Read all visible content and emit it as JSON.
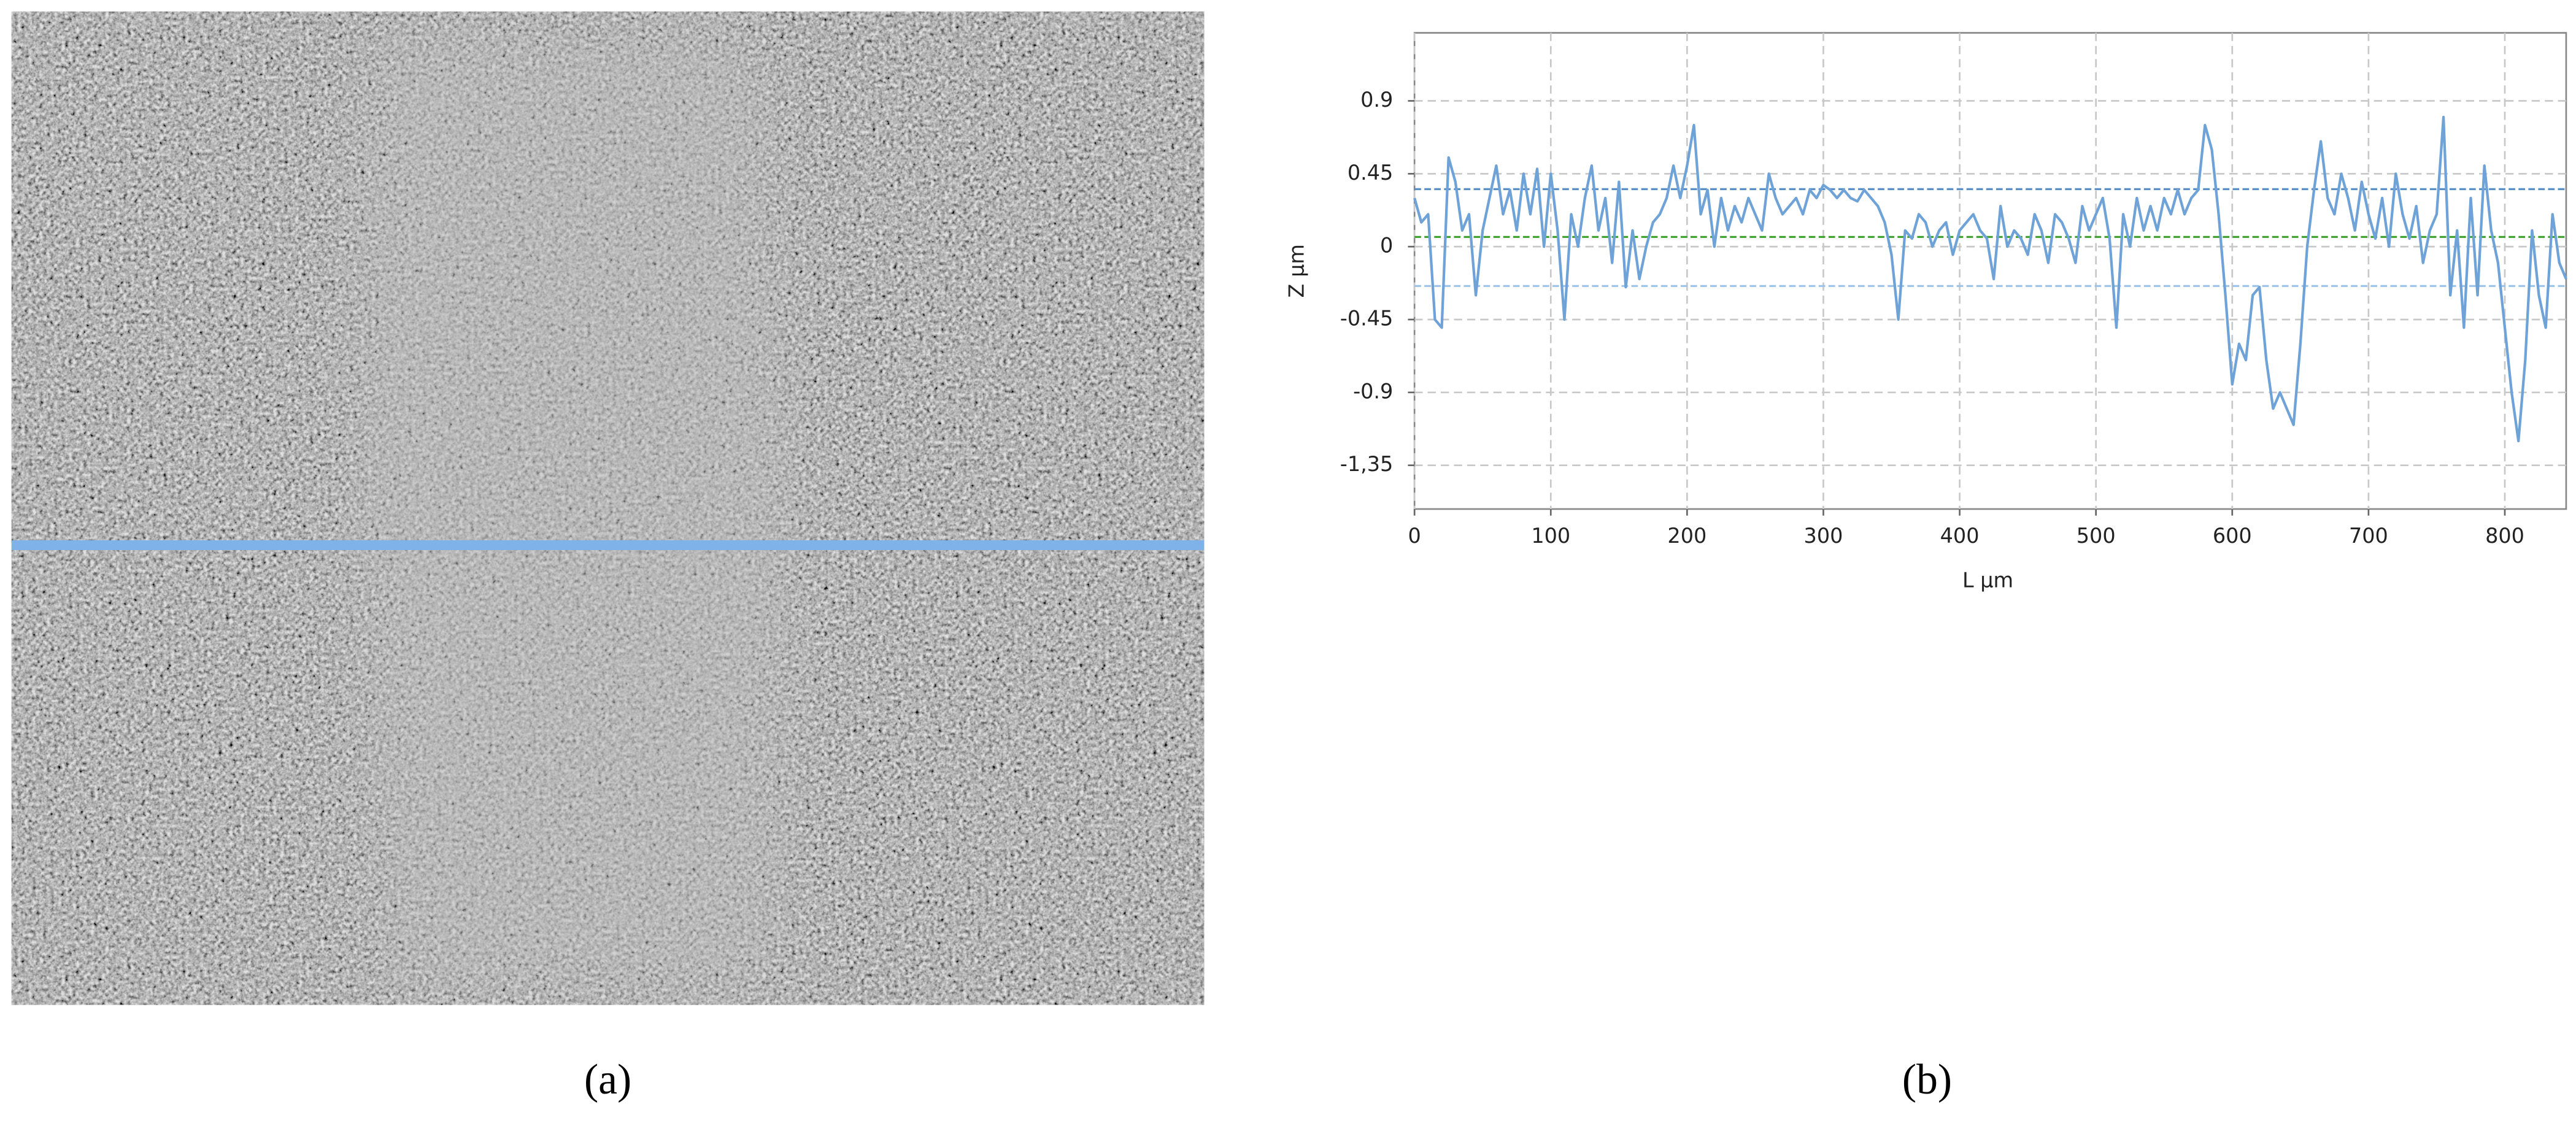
{
  "captions": [
    "(a)",
    "(b)"
  ],
  "chart_data": {
    "type": "line",
    "ylabel": "Z µm",
    "xlabel": "L µm",
    "xlim": [
      0,
      845
    ],
    "xticks": [
      0,
      100,
      200,
      300,
      400,
      500,
      600,
      700,
      800
    ],
    "ylim": [
      -1.62,
      1.32
    ],
    "yticks": [
      0.9,
      0.45,
      0,
      -0.45,
      -0.9,
      {
        "value": -1.35,
        "label": "-1,35"
      }
    ],
    "grid": true,
    "color": "#6fa3d8",
    "reference_lines": [
      {
        "value": 0.355,
        "color": "#5b8fc7"
      },
      {
        "value": 0.06,
        "color": "#3aa02a"
      },
      {
        "value": -0.243,
        "color": "#9cc3ea"
      }
    ],
    "x": [
      0,
      5,
      10,
      15,
      20,
      25,
      30,
      35,
      40,
      45,
      50,
      55,
      60,
      65,
      70,
      75,
      80,
      85,
      90,
      95,
      100,
      105,
      110,
      115,
      120,
      125,
      130,
      135,
      140,
      145,
      150,
      155,
      160,
      165,
      170,
      175,
      180,
      185,
      190,
      195,
      200,
      205,
      210,
      215,
      220,
      225,
      230,
      235,
      240,
      245,
      250,
      255,
      260,
      265,
      270,
      275,
      280,
      285,
      290,
      295,
      300,
      305,
      310,
      315,
      320,
      325,
      330,
      335,
      340,
      345,
      350,
      355,
      360,
      365,
      370,
      375,
      380,
      385,
      390,
      395,
      400,
      405,
      410,
      415,
      420,
      425,
      430,
      435,
      440,
      445,
      450,
      455,
      460,
      465,
      470,
      475,
      480,
      485,
      490,
      495,
      500,
      505,
      510,
      515,
      520,
      525,
      530,
      535,
      540,
      545,
      550,
      555,
      560,
      565,
      570,
      575,
      580,
      585,
      590,
      595,
      600,
      605,
      610,
      615,
      620,
      625,
      630,
      635,
      640,
      645,
      650,
      655,
      660,
      665,
      670,
      675,
      680,
      685,
      690,
      695,
      700,
      705,
      710,
      715,
      720,
      725,
      730,
      735,
      740,
      745,
      750,
      755,
      760,
      765,
      770,
      775,
      780,
      785,
      790,
      795,
      800,
      805,
      810,
      815,
      820,
      825,
      830,
      835,
      840,
      845
    ],
    "values": [
      0.3,
      0.15,
      0.2,
      -0.45,
      -0.5,
      0.55,
      0.4,
      0.1,
      0.2,
      -0.3,
      0.1,
      0.3,
      0.5,
      0.2,
      0.35,
      0.1,
      0.45,
      0.2,
      0.48,
      0.0,
      0.45,
      0.1,
      -0.45,
      0.2,
      0.0,
      0.3,
      0.5,
      0.1,
      0.3,
      -0.1,
      0.4,
      -0.25,
      0.1,
      -0.2,
      0.0,
      0.15,
      0.2,
      0.3,
      0.5,
      0.3,
      0.5,
      0.75,
      0.2,
      0.35,
      0.0,
      0.3,
      0.1,
      0.25,
      0.15,
      0.3,
      0.2,
      0.1,
      0.45,
      0.3,
      0.2,
      0.25,
      0.3,
      0.2,
      0.35,
      0.3,
      0.38,
      0.35,
      0.3,
      0.35,
      0.3,
      0.28,
      0.35,
      0.3,
      0.25,
      0.15,
      -0.05,
      -0.45,
      0.1,
      0.05,
      0.2,
      0.15,
      0.0,
      0.1,
      0.15,
      -0.05,
      0.1,
      0.15,
      0.2,
      0.1,
      0.05,
      -0.2,
      0.25,
      0.0,
      0.1,
      0.05,
      -0.05,
      0.2,
      0.1,
      -0.1,
      0.2,
      0.15,
      0.05,
      -0.1,
      0.25,
      0.1,
      0.2,
      0.3,
      0.05,
      -0.5,
      0.2,
      0.0,
      0.3,
      0.1,
      0.25,
      0.1,
      0.3,
      0.2,
      0.35,
      0.2,
      0.3,
      0.35,
      0.75,
      0.6,
      0.2,
      -0.3,
      -0.85,
      -0.6,
      -0.7,
      -0.3,
      -0.25,
      -0.7,
      -1.0,
      -0.9,
      -1.0,
      -1.1,
      -0.6,
      0.0,
      0.35,
      0.65,
      0.3,
      0.2,
      0.45,
      0.3,
      0.1,
      0.4,
      0.2,
      0.05,
      0.3,
      0.0,
      0.45,
      0.2,
      0.05,
      0.25,
      -0.1,
      0.1,
      0.2,
      0.8,
      -0.3,
      0.1,
      -0.5,
      0.3,
      -0.3,
      0.5,
      0.1,
      -0.1,
      -0.5,
      -0.9,
      -1.2,
      -0.7,
      0.1,
      -0.3,
      -0.5,
      0.2,
      -0.1,
      -0.2
    ]
  }
}
